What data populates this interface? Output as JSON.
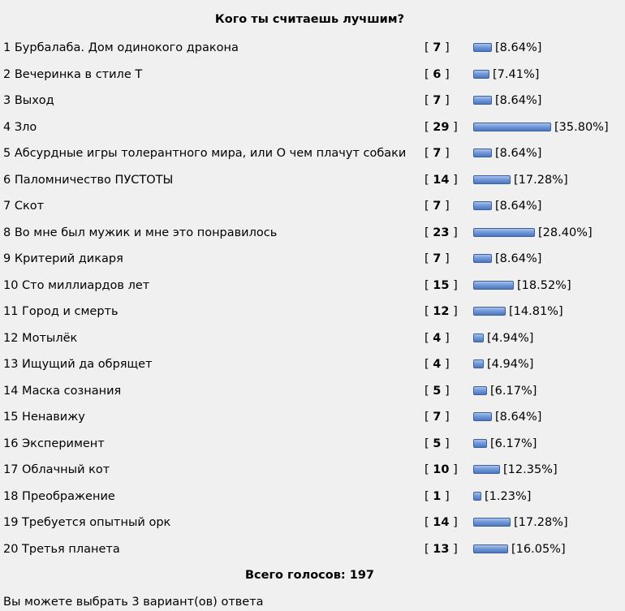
{
  "poll": {
    "title": "Кого ты считаешь лучшим?",
    "total_label": "Всего голосов: 197",
    "note": "Вы можете выбрать 3 вариант(ов) ответа",
    "options": [
      {
        "label": "1 Бурбалаба. Дом одинокого дракона",
        "votes": "7",
        "percent_text": "[8.64%]",
        "percent": 8.64
      },
      {
        "label": "2 Вечеринка в стиле Т",
        "votes": "6",
        "percent_text": "[7.41%]",
        "percent": 7.41
      },
      {
        "label": "3 Выход",
        "votes": "7",
        "percent_text": "[8.64%]",
        "percent": 8.64
      },
      {
        "label": "4 Зло",
        "votes": "29",
        "percent_text": "[35.80%]",
        "percent": 35.8
      },
      {
        "label": "5 Абсурдные игры толерантного мира, или О чем плачут собаки",
        "votes": "7",
        "percent_text": "[8.64%]",
        "percent": 8.64
      },
      {
        "label": "6 Паломничество ПУСТОТЫ",
        "votes": "14",
        "percent_text": "[17.28%]",
        "percent": 17.28
      },
      {
        "label": "7 Скот",
        "votes": "7",
        "percent_text": "[8.64%]",
        "percent": 8.64
      },
      {
        "label": "8 Во мне был мужик и мне это понравилось",
        "votes": "23",
        "percent_text": "[28.40%]",
        "percent": 28.4
      },
      {
        "label": "9 Критерий дикаря",
        "votes": "7",
        "percent_text": "[8.64%]",
        "percent": 8.64
      },
      {
        "label": "10 Сто миллиардов лет",
        "votes": "15",
        "percent_text": "[18.52%]",
        "percent": 18.52
      },
      {
        "label": "11 Город и смерть",
        "votes": "12",
        "percent_text": "[14.81%]",
        "percent": 14.81
      },
      {
        "label": "12 Мотылёк",
        "votes": "4",
        "percent_text": "[4.94%]",
        "percent": 4.94
      },
      {
        "label": "13 Ищущий да обрящет",
        "votes": "4",
        "percent_text": "[4.94%]",
        "percent": 4.94
      },
      {
        "label": "14 Маска сознания",
        "votes": "5",
        "percent_text": "[6.17%]",
        "percent": 6.17
      },
      {
        "label": "15 Ненавижу",
        "votes": "7",
        "percent_text": "[8.64%]",
        "percent": 8.64
      },
      {
        "label": "16 Эксперимент",
        "votes": "5",
        "percent_text": "[6.17%]",
        "percent": 6.17
      },
      {
        "label": "17 Облачный кот",
        "votes": "10",
        "percent_text": "[12.35%]",
        "percent": 12.35
      },
      {
        "label": "18 Преображение",
        "votes": "1",
        "percent_text": "[1.23%]",
        "percent": 1.23
      },
      {
        "label": "19 Требуется опытный орк",
        "votes": "14",
        "percent_text": "[17.28%]",
        "percent": 17.28
      },
      {
        "label": "20 Третья планета",
        "votes": "13",
        "percent_text": "[16.05%]",
        "percent": 16.05
      }
    ]
  },
  "colors": {
    "background": "#f0f0f0",
    "bar_fill": "#7399d8",
    "bar_border": "#3c5f9e",
    "text": "#000000"
  }
}
